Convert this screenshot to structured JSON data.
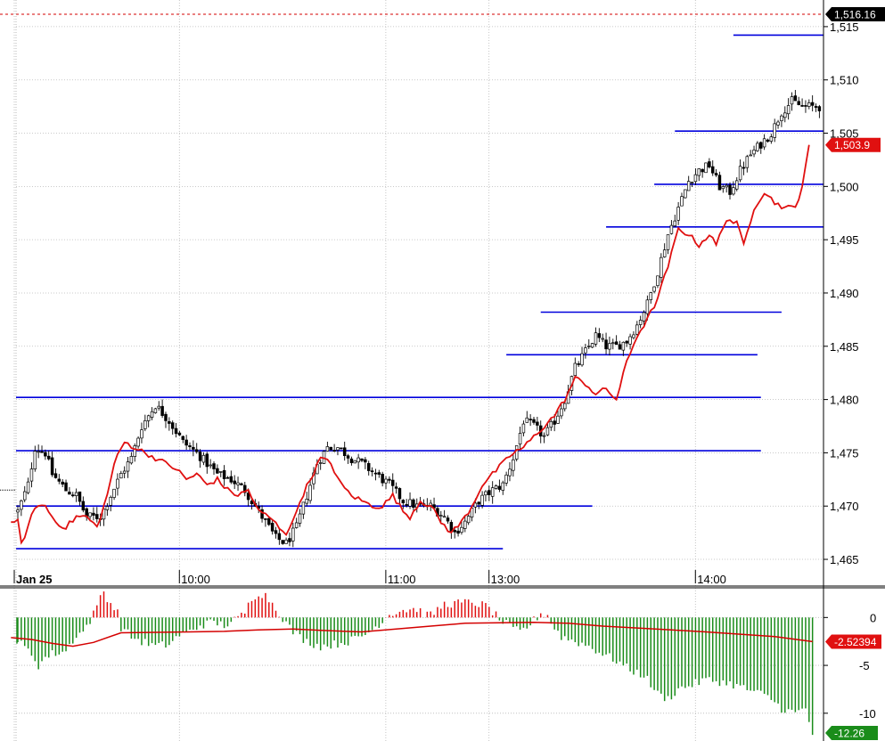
{
  "chart_data": [
    {
      "type": "candlestick",
      "panel": "price",
      "y_ticks": [
        1465,
        1470,
        1475,
        1480,
        1485,
        1490,
        1495,
        1500,
        1505,
        1510,
        1515
      ],
      "y_tick_labels": [
        "1,465",
        "1,470",
        "1,475",
        "1,480",
        "1,485",
        "1,490",
        "1,495",
        "1,500",
        "1,505",
        "1,510",
        "1,515"
      ],
      "ylim": [
        1464,
        1517.5
      ],
      "x_ticks": [
        {
          "at": 0,
          "label": "Jan 25",
          "bold": true
        },
        {
          "at": 48,
          "label": "10:00",
          "bold": false
        },
        {
          "at": 108,
          "label": "11:00",
          "bold": false
        },
        {
          "at": 138,
          "label": "13:00",
          "bold": false
        },
        {
          "at": 198,
          "label": "14:00",
          "bold": false
        }
      ],
      "session_boundaries": [
        0,
        48,
        108,
        138,
        198
      ],
      "bars_total": 233,
      "close_anchors": [
        [
          0,
          1469.5
        ],
        [
          3,
          1472
        ],
        [
          5,
          1475.5
        ],
        [
          8,
          1475
        ],
        [
          10,
          1473
        ],
        [
          14,
          1471.5
        ],
        [
          17,
          1471
        ],
        [
          20,
          1469
        ],
        [
          24,
          1469
        ],
        [
          27,
          1471
        ],
        [
          30,
          1473
        ],
        [
          33,
          1474.5
        ],
        [
          36,
          1477.5
        ],
        [
          40,
          1479.5
        ],
        [
          44,
          1478
        ],
        [
          48,
          1476
        ],
        [
          52,
          1475
        ],
        [
          55,
          1474
        ],
        [
          58,
          1473
        ],
        [
          62,
          1472.5
        ],
        [
          66,
          1471.5
        ],
        [
          69,
          1470
        ],
        [
          72,
          1468.5
        ],
        [
          75,
          1467
        ],
        [
          78,
          1466.5
        ],
        [
          81,
          1468
        ],
        [
          84,
          1471
        ],
        [
          87,
          1474
        ],
        [
          90,
          1475.5
        ],
        [
          93,
          1475.5
        ],
        [
          97,
          1474.5
        ],
        [
          100,
          1474
        ],
        [
          104,
          1473
        ],
        [
          108,
          1472
        ],
        [
          112,
          1470.5
        ],
        [
          116,
          1470
        ],
        [
          120,
          1470
        ],
        [
          124,
          1469
        ],
        [
          127,
          1467.5
        ],
        [
          130,
          1468.5
        ],
        [
          134,
          1470.5
        ],
        [
          138,
          1471.5
        ],
        [
          141,
          1472
        ],
        [
          144,
          1474.5
        ],
        [
          147,
          1478
        ],
        [
          150,
          1477.5
        ],
        [
          153,
          1476.5
        ],
        [
          156,
          1478
        ],
        [
          159,
          1480
        ],
        [
          162,
          1483
        ],
        [
          165,
          1484.5
        ],
        [
          168,
          1486
        ],
        [
          171,
          1485
        ],
        [
          174,
          1485
        ],
        [
          177,
          1485.5
        ],
        [
          180,
          1487
        ],
        [
          183,
          1489
        ],
        [
          186,
          1492
        ],
        [
          189,
          1495.5
        ],
        [
          192,
          1498
        ],
        [
          195,
          1500.5
        ],
        [
          198,
          1501.5
        ],
        [
          201,
          1502
        ],
        [
          204,
          1500
        ],
        [
          207,
          1499.5
        ],
        [
          210,
          1501.5
        ],
        [
          213,
          1503
        ],
        [
          216,
          1504
        ],
        [
          219,
          1505
        ],
        [
          222,
          1507
        ],
        [
          225,
          1508
        ],
        [
          228,
          1507.5
        ],
        [
          233,
          1507.5
        ]
      ],
      "levels": [
        {
          "price": 1466.0,
          "from": -1,
          "to": 141
        },
        {
          "price": 1470.0,
          "from": -1,
          "to": 167
        },
        {
          "price": 1475.2,
          "from": -1,
          "to": 216
        },
        {
          "price": 1480.2,
          "from": -1,
          "to": 216
        },
        {
          "price": 1484.2,
          "from": 142,
          "to": 215
        },
        {
          "price": 1488.2,
          "from": 152,
          "to": 222
        },
        {
          "price": 1496.2,
          "from": 171,
          "to": 240
        },
        {
          "price": 1500.2,
          "from": 185,
          "to": 240
        },
        {
          "price": 1505.2,
          "from": 191,
          "to": 240
        },
        {
          "price": 1514.2,
          "from": 208,
          "to": 240
        }
      ],
      "overlay_series": {
        "name": "",
        "points": [
          [
            -2,
            1468.5
          ],
          [
            0,
            1468.5
          ],
          [
            1,
            1466.5
          ],
          [
            3,
            1468
          ],
          [
            5,
            1470
          ],
          [
            8,
            1470
          ],
          [
            11,
            1468.5
          ],
          [
            14,
            1468
          ],
          [
            17,
            1469
          ],
          [
            20,
            1469
          ],
          [
            23,
            1468
          ],
          [
            26,
            1471
          ],
          [
            28,
            1474
          ],
          [
            31,
            1476
          ],
          [
            34,
            1475.5
          ],
          [
            37,
            1475
          ],
          [
            40,
            1474.5
          ],
          [
            43,
            1474
          ],
          [
            46,
            1473.5
          ],
          [
            49,
            1472.5
          ],
          [
            52,
            1473
          ],
          [
            55,
            1472
          ],
          [
            58,
            1472.5
          ],
          [
            61,
            1471.5
          ],
          [
            64,
            1471
          ],
          [
            67,
            1471.5
          ],
          [
            70,
            1469.5
          ],
          [
            73,
            1469
          ],
          [
            76,
            1468
          ],
          [
            78,
            1467.5
          ],
          [
            80,
            1468.5
          ],
          [
            82,
            1470.5
          ],
          [
            85,
            1472.5
          ],
          [
            88,
            1474.5
          ],
          [
            91,
            1474
          ],
          [
            94,
            1472
          ],
          [
            97,
            1471
          ],
          [
            100,
            1470.5
          ],
          [
            103,
            1470
          ],
          [
            106,
            1470
          ],
          [
            109,
            1471
          ],
          [
            112,
            1469.5
          ],
          [
            114,
            1469
          ],
          [
            117,
            1470.5
          ],
          [
            120,
            1470
          ],
          [
            123,
            1468.5
          ],
          [
            126,
            1467.5
          ],
          [
            129,
            1468.5
          ],
          [
            132,
            1470
          ],
          [
            135,
            1472
          ],
          [
            138,
            1473
          ],
          [
            141,
            1474
          ],
          [
            144,
            1475
          ],
          [
            147,
            1475.5
          ],
          [
            150,
            1476.5
          ],
          [
            153,
            1477.5
          ],
          [
            156,
            1478.5
          ],
          [
            159,
            1480
          ],
          [
            162,
            1482
          ],
          [
            165,
            1481.5
          ],
          [
            168,
            1480.5
          ],
          [
            171,
            1481
          ],
          [
            174,
            1480
          ],
          [
            177,
            1483.5
          ],
          [
            180,
            1486
          ],
          [
            183,
            1487.5
          ],
          [
            186,
            1489.5
          ],
          [
            189,
            1492.5
          ],
          [
            192,
            1496
          ],
          [
            195,
            1495.5
          ],
          [
            198,
            1494.5
          ],
          [
            201,
            1495.5
          ],
          [
            203,
            1494.5
          ],
          [
            206,
            1497
          ],
          [
            209,
            1496.5
          ],
          [
            211,
            1494.5
          ],
          [
            214,
            1498
          ],
          [
            217,
            1499.5
          ],
          [
            220,
            1498.5
          ],
          [
            223,
            1498
          ],
          [
            226,
            1498
          ],
          [
            227,
            1499
          ],
          [
            228,
            1500
          ],
          [
            230,
            1503.9
          ]
        ]
      },
      "last_price_tag": {
        "value": "1,503.9",
        "price": 1503.9,
        "color": "#e01010"
      },
      "top_tag": {
        "value": "1,516.16",
        "price": 1516.16,
        "color": "#000000"
      },
      "colors": {
        "candle": "#000000",
        "overlay": "#e01010",
        "level": "#0000dd",
        "grid": "#b8b8b8",
        "hline": "#d40000"
      }
    },
    {
      "type": "histogram",
      "panel": "oscillator",
      "y_ticks": [
        0,
        -5,
        -10
      ],
      "y_tick_labels": [
        "0",
        "-5",
        "-10"
      ],
      "ylim": [
        -12.9,
        3.1
      ],
      "histogram_anchors": [
        [
          0,
          -2.5
        ],
        [
          4,
          -3.8
        ],
        [
          6,
          -5
        ],
        [
          8,
          -4.2
        ],
        [
          10,
          -3.8
        ],
        [
          14,
          -3.5
        ],
        [
          17,
          -1.8
        ],
        [
          19,
          -1.5
        ],
        [
          21,
          -0.3
        ],
        [
          23,
          1.0
        ],
        [
          24,
          2.5
        ],
        [
          25,
          2.6
        ],
        [
          27,
          1.5
        ],
        [
          29,
          0.5
        ],
        [
          30,
          -1
        ],
        [
          33,
          -2
        ],
        [
          36,
          -2.5
        ],
        [
          40,
          -3
        ],
        [
          44,
          -2.8
        ],
        [
          47,
          -1.8
        ],
        [
          50,
          -1.5
        ],
        [
          53,
          -0.8
        ],
        [
          57,
          -0.5
        ],
        [
          60,
          -0.8
        ],
        [
          62,
          -0.5
        ],
        [
          64,
          -0.1
        ],
        [
          66,
          0.5
        ],
        [
          67,
          1.3
        ],
        [
          68,
          2.0
        ],
        [
          70,
          2.6
        ],
        [
          72,
          2.3
        ],
        [
          74,
          1.5
        ],
        [
          76,
          0.5
        ],
        [
          78,
          -0.6
        ],
        [
          80,
          -1.5
        ],
        [
          84,
          -2.5
        ],
        [
          88,
          -3
        ],
        [
          92,
          -2.8
        ],
        [
          96,
          -2.5
        ],
        [
          100,
          -2
        ],
        [
          104,
          -1
        ],
        [
          106,
          -0.3
        ],
        [
          108,
          0.4
        ],
        [
          112,
          0.8
        ],
        [
          116,
          0.9
        ],
        [
          118,
          0.4
        ],
        [
          120,
          0.2
        ],
        [
          122,
          0.8
        ],
        [
          124,
          1.4
        ],
        [
          128,
          1.5
        ],
        [
          132,
          1.6
        ],
        [
          136,
          1.2
        ],
        [
          138,
          0.6
        ],
        [
          140,
          -0.2
        ],
        [
          144,
          -1.2
        ],
        [
          146,
          -1.5
        ],
        [
          148,
          -1
        ],
        [
          150,
          -0.3
        ],
        [
          152,
          0.4
        ],
        [
          154,
          0.3
        ],
        [
          155,
          -0.6
        ],
        [
          158,
          -2
        ],
        [
          162,
          -2.5
        ],
        [
          166,
          -3
        ],
        [
          170,
          -3.8
        ],
        [
          174,
          -4.5
        ],
        [
          178,
          -5.5
        ],
        [
          182,
          -6
        ],
        [
          186,
          -8
        ],
        [
          189,
          -8.5
        ],
        [
          192,
          -7.5
        ],
        [
          196,
          -7
        ],
        [
          200,
          -6.5
        ],
        [
          204,
          -6.7
        ],
        [
          208,
          -7
        ],
        [
          212,
          -7.5
        ],
        [
          216,
          -8
        ],
        [
          219,
          -8.5
        ],
        [
          222,
          -9.5
        ],
        [
          226,
          -10
        ],
        [
          229,
          -9.5
        ],
        [
          231,
          -12.26
        ]
      ],
      "signal_series": {
        "name": "",
        "points": [
          [
            -2,
            -2.1
          ],
          [
            4,
            -2.3
          ],
          [
            10,
            -2.7
          ],
          [
            16,
            -3.0
          ],
          [
            22,
            -2.6
          ],
          [
            30,
            -1.6
          ],
          [
            40,
            -1.55
          ],
          [
            50,
            -1.5
          ],
          [
            60,
            -1.45
          ],
          [
            70,
            -1.3
          ],
          [
            80,
            -1.2
          ],
          [
            88,
            -1.35
          ],
          [
            100,
            -1.5
          ],
          [
            110,
            -1.2
          ],
          [
            120,
            -0.9
          ],
          [
            130,
            -0.6
          ],
          [
            140,
            -0.55
          ],
          [
            150,
            -0.5
          ],
          [
            160,
            -0.6
          ],
          [
            170,
            -0.9
          ],
          [
            180,
            -1.1
          ],
          [
            190,
            -1.3
          ],
          [
            200,
            -1.5
          ],
          [
            210,
            -1.75
          ],
          [
            220,
            -2.0
          ],
          [
            231,
            -2.52
          ]
        ]
      },
      "signal_tag": {
        "value": "-2.52394",
        "value_num": -2.52394,
        "color": "#e01010"
      },
      "histogram_tag": {
        "value": "-12.26",
        "value_num": -12.26,
        "color": "#1a8c1a"
      },
      "colors": {
        "positive": "#e01010",
        "negative": "#1a8c1a",
        "signal": "#d40000",
        "grid": "#b8b8b8"
      }
    }
  ]
}
